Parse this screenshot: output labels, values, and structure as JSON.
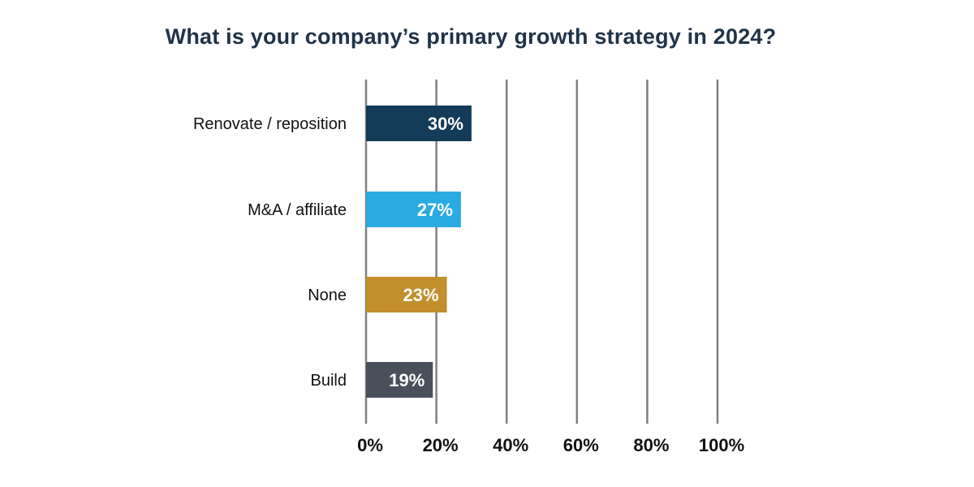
{
  "chart_data": {
    "type": "bar",
    "orientation": "horizontal",
    "title": "What is your company’s primary growth strategy in 2024?",
    "categories": [
      "Renovate / reposition",
      "M&A / affiliate",
      "None",
      "Build"
    ],
    "values": [
      30,
      27,
      23,
      19
    ],
    "value_labels": [
      "30%",
      "27%",
      "23%",
      "19%"
    ],
    "bar_colors": [
      "#143b57",
      "#29abe2",
      "#c28f2c",
      "#4a4f5c"
    ],
    "xlim": [
      0,
      100
    ],
    "x_ticks": [
      0,
      20,
      40,
      60,
      80,
      100
    ],
    "x_tick_labels": [
      "0%",
      "20%",
      "40%",
      "60%",
      "80%",
      "100%"
    ],
    "grid": true,
    "grid_color": "#808080",
    "xlabel": "",
    "ylabel": ""
  }
}
